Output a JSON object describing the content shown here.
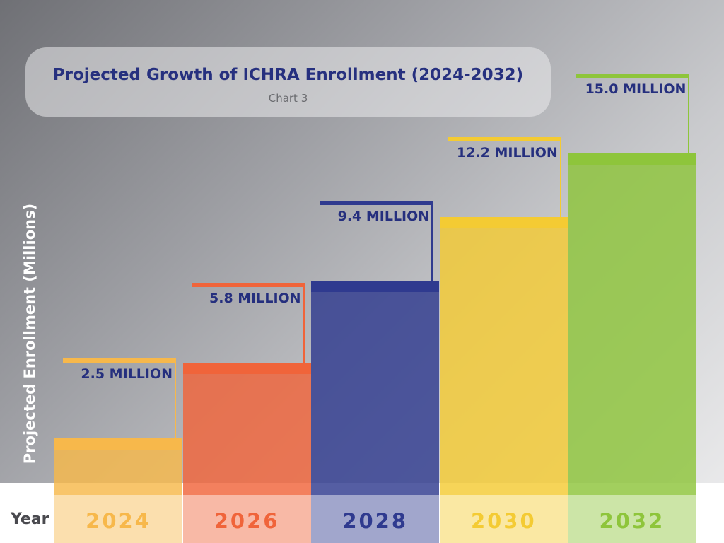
{
  "chart_data": {
    "type": "bar",
    "title": "Projected Growth of ICHRA Enrollment (2024-2032)",
    "subtitle": "Chart 3",
    "xlabel": "Year",
    "ylabel": "Projected Enrollment (Millions)",
    "categories": [
      "2024",
      "2026",
      "2028",
      "2030",
      "2032"
    ],
    "values": [
      2.5,
      5.8,
      9.4,
      12.2,
      15.0
    ],
    "value_labels": [
      "2.5 MILLION",
      "5.8 MILLION",
      "9.4 MILLION",
      "12.2 MILLION",
      "15.0 MILLION"
    ],
    "colors": [
      "#f7b84b",
      "#f0643a",
      "#2f3a8f",
      "#f4cb33",
      "#8ec53b"
    ],
    "ylim": [
      0,
      15.0
    ]
  }
}
